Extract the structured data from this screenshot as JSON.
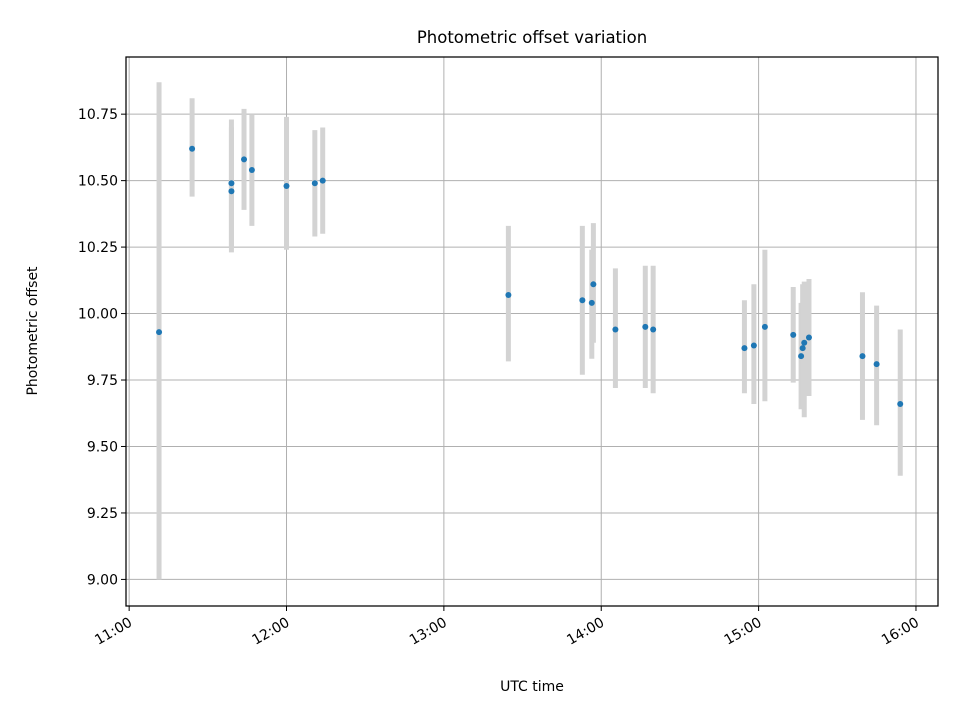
{
  "chart_data": {
    "type": "scatter",
    "title": "Photometric offset variation",
    "xlabel": "UTC time",
    "ylabel": "Photometric offset",
    "xlim": [
      10.98,
      16.14
    ],
    "ylim": [
      8.9,
      10.965
    ],
    "xticks": [
      {
        "value": 11,
        "label": "11:00"
      },
      {
        "value": 12,
        "label": "12:00"
      },
      {
        "value": 13,
        "label": "13:00"
      },
      {
        "value": 14,
        "label": "14:00"
      },
      {
        "value": 15,
        "label": "15:00"
      },
      {
        "value": 16,
        "label": "16:00"
      }
    ],
    "yticks": [
      {
        "value": 9.0,
        "label": "9.00"
      },
      {
        "value": 9.25,
        "label": "9.25"
      },
      {
        "value": 9.5,
        "label": "9.50"
      },
      {
        "value": 9.75,
        "label": "9.75"
      },
      {
        "value": 10.0,
        "label": "10.00"
      },
      {
        "value": 10.25,
        "label": "10.25"
      },
      {
        "value": 10.5,
        "label": "10.50"
      },
      {
        "value": 10.75,
        "label": "10.75"
      }
    ],
    "grid": true,
    "point_color": "#1f77b4",
    "errorbar_color": "#d3d3d3",
    "points": [
      {
        "x": 11.19,
        "y": 9.93,
        "lo": 9.0,
        "hi": 10.87
      },
      {
        "x": 11.4,
        "y": 10.62,
        "lo": 10.44,
        "hi": 10.81
      },
      {
        "x": 11.65,
        "y": 10.49,
        "lo": 10.25,
        "hi": 10.73
      },
      {
        "x": 11.65,
        "y": 10.46,
        "lo": 10.23,
        "hi": 10.7
      },
      {
        "x": 11.73,
        "y": 10.58,
        "lo": 10.39,
        "hi": 10.77
      },
      {
        "x": 11.78,
        "y": 10.54,
        "lo": 10.33,
        "hi": 10.75
      },
      {
        "x": 12.0,
        "y": 10.48,
        "lo": 10.24,
        "hi": 10.74
      },
      {
        "x": 12.18,
        "y": 10.49,
        "lo": 10.29,
        "hi": 10.69
      },
      {
        "x": 12.23,
        "y": 10.5,
        "lo": 10.3,
        "hi": 10.7
      },
      {
        "x": 13.41,
        "y": 10.07,
        "lo": 9.82,
        "hi": 10.33
      },
      {
        "x": 13.88,
        "y": 10.05,
        "lo": 9.77,
        "hi": 10.33
      },
      {
        "x": 13.94,
        "y": 10.04,
        "lo": 9.83,
        "hi": 10.24
      },
      {
        "x": 13.95,
        "y": 10.11,
        "lo": 9.89,
        "hi": 10.34
      },
      {
        "x": 14.09,
        "y": 9.94,
        "lo": 9.72,
        "hi": 10.17
      },
      {
        "x": 14.28,
        "y": 9.95,
        "lo": 9.72,
        "hi": 10.18
      },
      {
        "x": 14.33,
        "y": 9.94,
        "lo": 9.7,
        "hi": 10.18
      },
      {
        "x": 14.91,
        "y": 9.87,
        "lo": 9.7,
        "hi": 10.05
      },
      {
        "x": 14.97,
        "y": 9.88,
        "lo": 9.66,
        "hi": 10.11
      },
      {
        "x": 15.04,
        "y": 9.95,
        "lo": 9.67,
        "hi": 10.24
      },
      {
        "x": 15.22,
        "y": 9.92,
        "lo": 9.74,
        "hi": 10.1
      },
      {
        "x": 15.27,
        "y": 9.84,
        "lo": 9.64,
        "hi": 10.04
      },
      {
        "x": 15.28,
        "y": 9.87,
        "lo": 9.65,
        "hi": 10.11
      },
      {
        "x": 15.29,
        "y": 9.89,
        "lo": 9.61,
        "hi": 10.12
      },
      {
        "x": 15.32,
        "y": 9.91,
        "lo": 9.69,
        "hi": 10.13
      },
      {
        "x": 15.66,
        "y": 9.84,
        "lo": 9.6,
        "hi": 10.08
      },
      {
        "x": 15.75,
        "y": 9.81,
        "lo": 9.58,
        "hi": 10.03
      },
      {
        "x": 15.9,
        "y": 9.66,
        "lo": 9.39,
        "hi": 9.94
      }
    ]
  }
}
